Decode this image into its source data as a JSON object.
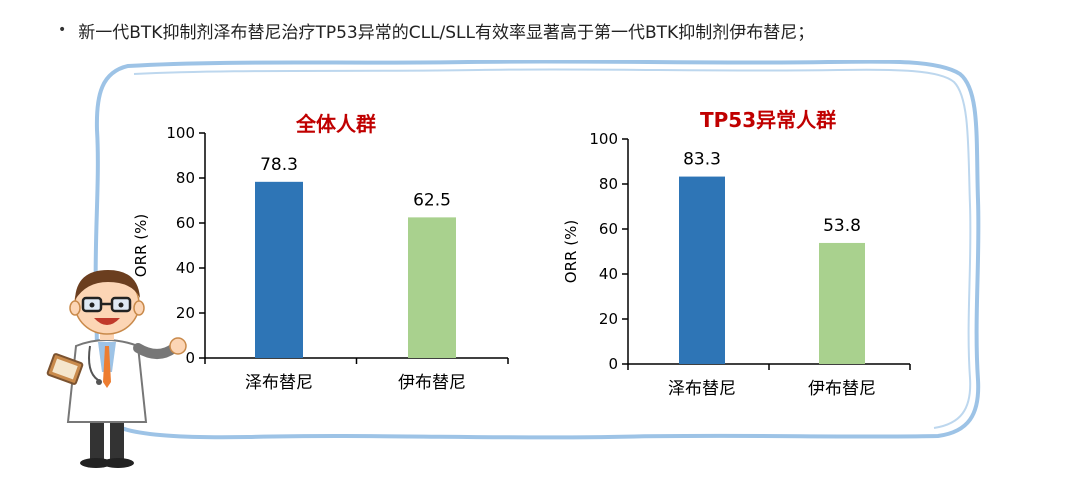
{
  "bullet": {
    "symbol": "•",
    "text": "新一代BTK抑制剂泽布替尼治疗TP53异常的CLL/SLL有效率显著高于第一代BTK抑制剂伊布替尼；"
  },
  "colors": {
    "title_red": "#c00000",
    "bar_blue": "#2e75b6",
    "bar_green": "#a9d18e",
    "frame_blue": "#9dc3e6"
  },
  "chart_data": [
    {
      "type": "bar",
      "title": "全体人群",
      "categories": [
        "泽布替尼",
        "伊布替尼"
      ],
      "values": [
        78.3,
        62.5
      ],
      "value_labels": [
        "78.3",
        "62.5"
      ],
      "ylabel": "ORR (%)",
      "ylim": [
        0,
        100
      ],
      "yticks": [
        "0",
        "20",
        "40",
        "60",
        "80",
        "100"
      ],
      "colors": [
        "#2e75b6",
        "#a9d18e"
      ]
    },
    {
      "type": "bar",
      "title": "TP53异常人群",
      "categories": [
        "泽布替尼",
        "伊布替尼"
      ],
      "values": [
        83.3,
        53.8
      ],
      "value_labels": [
        "83.3",
        "53.8"
      ],
      "ylabel": "ORR (%)",
      "ylim": [
        0,
        100
      ],
      "yticks": [
        "0",
        "20",
        "40",
        "60",
        "80",
        "100"
      ],
      "colors": [
        "#2e75b6",
        "#a9d18e"
      ]
    }
  ]
}
